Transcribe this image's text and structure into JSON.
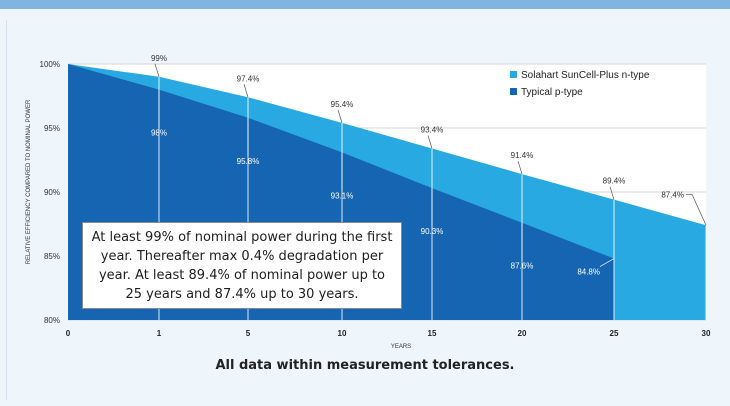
{
  "chart_data": {
    "type": "area",
    "x": [
      0,
      1,
      5,
      10,
      15,
      20,
      25,
      30
    ],
    "xlabel": "YEARS",
    "ylabel": "RELATIVE EFFICIENCY COMPARED TO NOMINAL POWER",
    "ylim": [
      80,
      100
    ],
    "yticks": [
      "100%",
      "95%",
      "90%",
      "85%",
      "80%"
    ],
    "ytick_values": [
      100,
      95,
      90,
      85,
      80
    ],
    "xticks": [
      "0",
      "1",
      "5",
      "10",
      "15",
      "20",
      "25",
      "30"
    ],
    "grid": true,
    "legend_position": "top-right",
    "series": [
      {
        "name": "Solahart SunCell-Plus n-type",
        "color": "#29a9e1",
        "x": [
          0,
          1,
          5,
          10,
          15,
          20,
          25,
          30
        ],
        "values": [
          100,
          99,
          97.4,
          95.4,
          93.4,
          91.4,
          89.4,
          87.4
        ],
        "labels": [
          "",
          "99%",
          "97.4%",
          "95.4%",
          "93.4%",
          "91.4%",
          "89.4%",
          "87.4%"
        ]
      },
      {
        "name": "Typical p-type",
        "color": "#1565b2",
        "x": [
          0,
          1,
          5,
          10,
          15,
          20,
          25
        ],
        "values": [
          100,
          98,
          95.8,
          93.1,
          90.3,
          87.6,
          84.8
        ],
        "labels": [
          "",
          "98%",
          "95.8%",
          "93.1%",
          "90.3%",
          "87.6%",
          "84.8%"
        ]
      }
    ],
    "annotation": "At least 99% of nominal power during the first year. Thereafter max 0.4% degradation per year. At least 89.4% of nominal power up to 25 years and 87.4% up to 30 years."
  },
  "footnote": "All data within measurement tolerances."
}
